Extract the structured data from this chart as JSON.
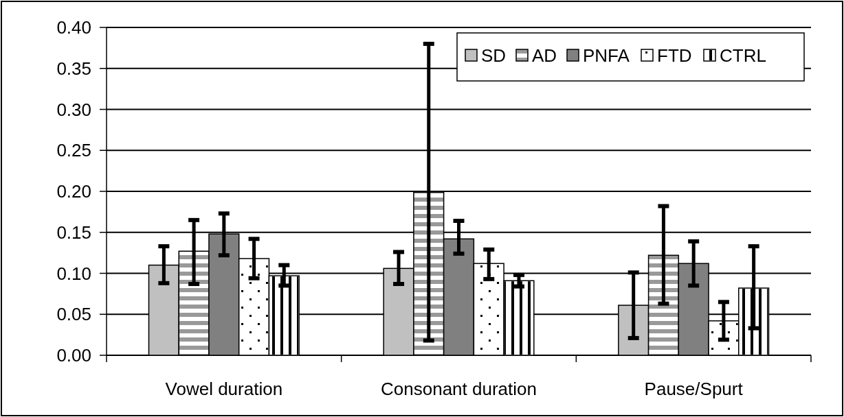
{
  "chart_data": {
    "type": "bar",
    "categories": [
      "Vowel duration",
      "Consonant duration",
      "Pause/Spurt"
    ],
    "series": [
      {
        "name": "SD",
        "color": "#c0c0c0",
        "values": [
          0.11,
          0.106,
          0.061
        ],
        "errors": [
          [
            0.088,
            0.133
          ],
          [
            0.087,
            0.126
          ],
          [
            0.021,
            0.101
          ]
        ]
      },
      {
        "name": "AD",
        "color": "#999999",
        "values": [
          0.127,
          0.199,
          0.122
        ],
        "errors": [
          [
            0.087,
            0.165
          ],
          [
            0.018,
            0.38
          ],
          [
            0.063,
            0.182
          ]
        ]
      },
      {
        "name": "PNFA",
        "color": "#808080",
        "values": [
          0.148,
          0.142,
          0.112
        ],
        "errors": [
          [
            0.122,
            0.173
          ],
          [
            0.124,
            0.164
          ],
          [
            0.085,
            0.139
          ]
        ]
      },
      {
        "name": "FTD",
        "color": "#ffffff",
        "values": [
          0.118,
          0.112,
          0.042
        ],
        "errors": [
          [
            0.094,
            0.142
          ],
          [
            0.093,
            0.129
          ],
          [
            0.019,
            0.065
          ]
        ]
      },
      {
        "name": "CTRL",
        "color": "#ffffff",
        "values": [
          0.097,
          0.091,
          0.082
        ],
        "errors": [
          [
            0.085,
            0.11
          ],
          [
            0.084,
            0.098
          ],
          [
            0.033,
            0.133
          ]
        ]
      }
    ],
    "ylim": [
      0,
      0.4
    ],
    "yticks": [
      {
        "value": 0,
        "label": "0.00"
      },
      {
        "value": 0.05,
        "label": "0.05"
      },
      {
        "value": 0.1,
        "label": "0.10"
      },
      {
        "value": 0.15,
        "label": "0.15"
      },
      {
        "value": 0.2,
        "label": "0.20"
      },
      {
        "value": 0.25,
        "label": "0.25"
      },
      {
        "value": 0.3,
        "label": "0.30"
      },
      {
        "value": 0.35,
        "label": "0.35"
      },
      {
        "value": 0.4,
        "label": "0.40"
      }
    ],
    "grid": "y",
    "legend": "top right"
  }
}
